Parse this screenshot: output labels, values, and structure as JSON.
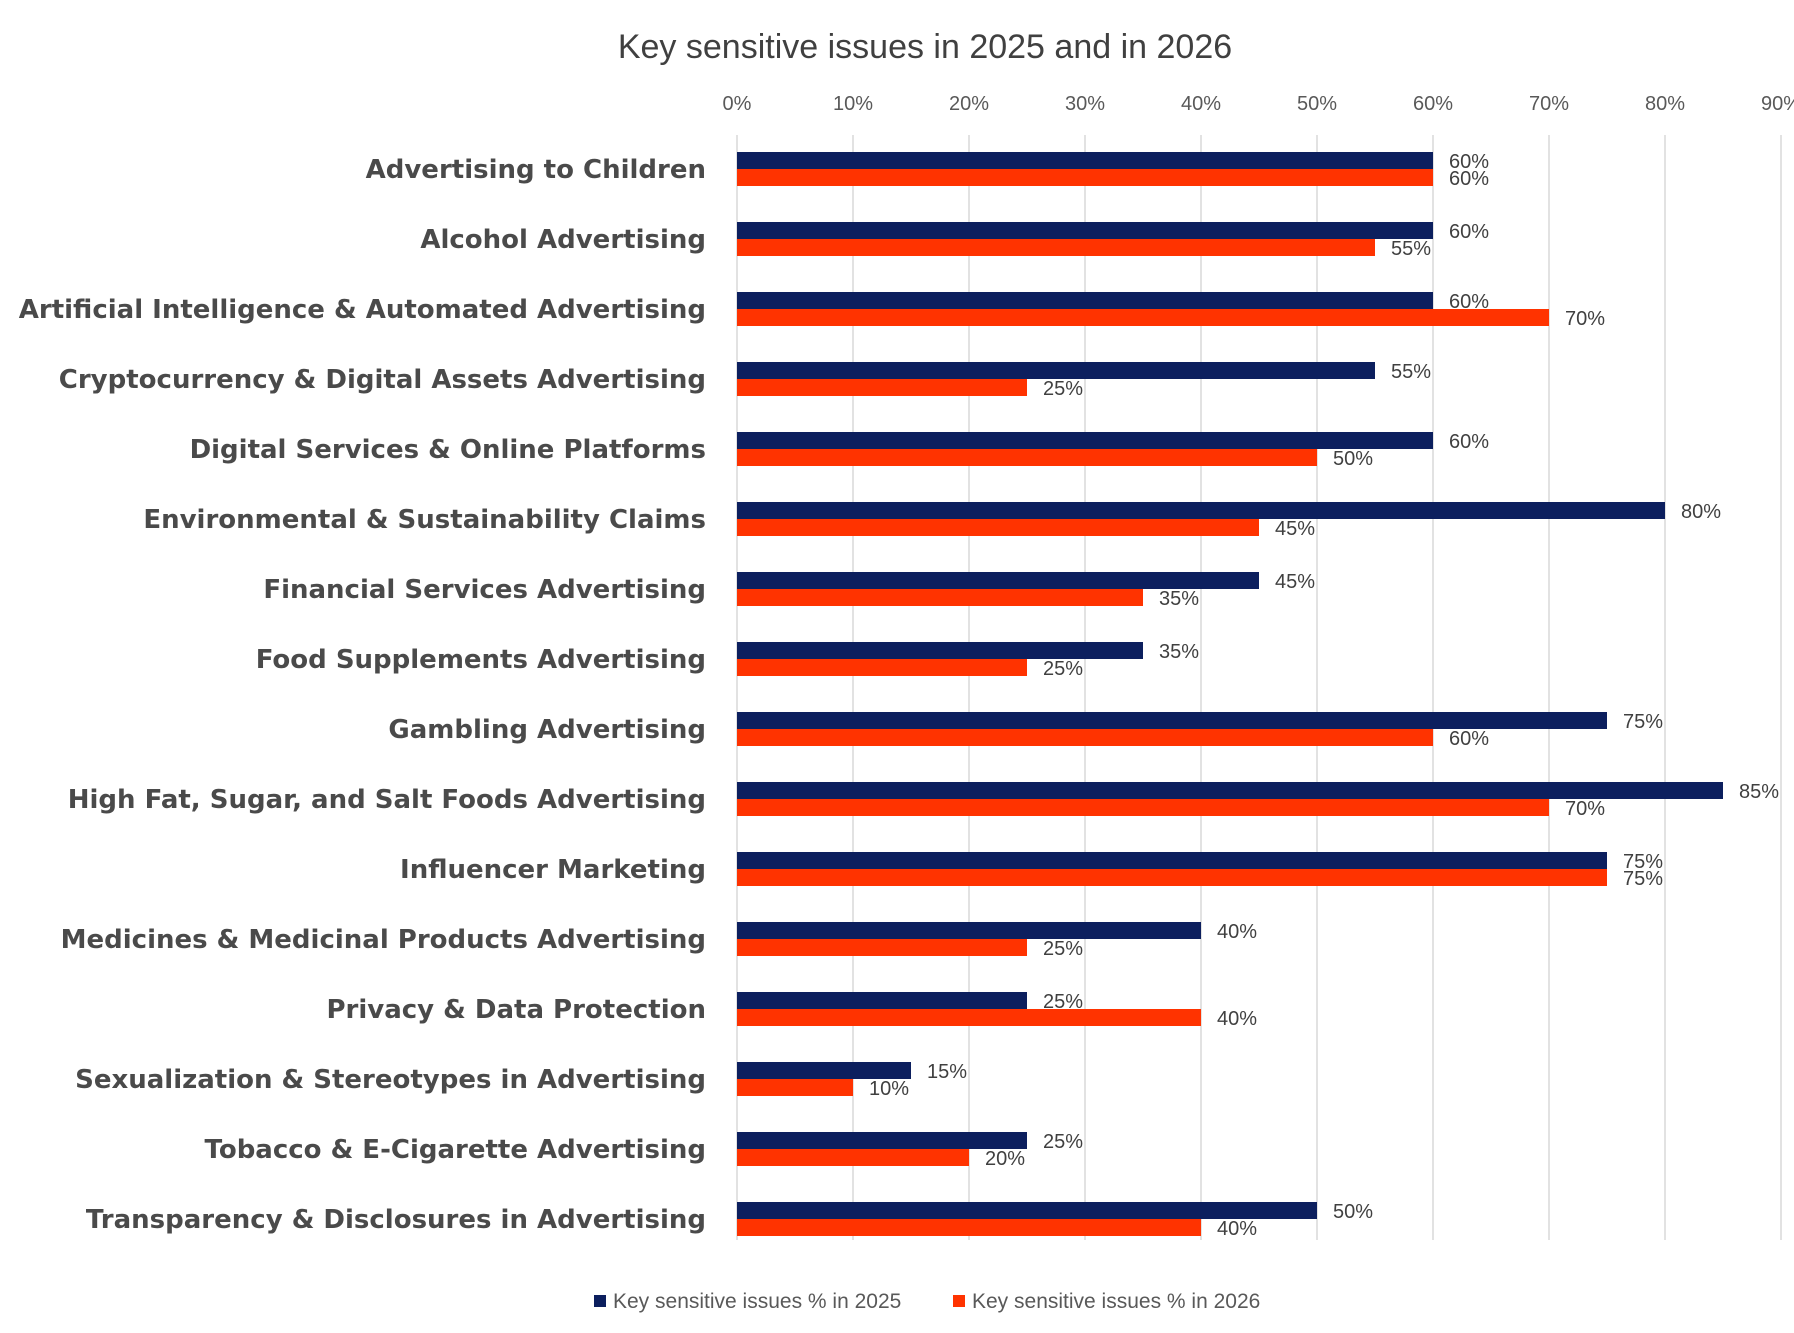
{
  "chart_data": {
    "type": "bar",
    "orientation": "horizontal",
    "title": "Key sensitive issues in 2025 and in 2026",
    "xlabel": "",
    "ylabel": "",
    "xlim": [
      0,
      90
    ],
    "x_ticks": [
      "0%",
      "10%",
      "20%",
      "30%",
      "40%",
      "50%",
      "60%",
      "70%",
      "80%",
      "90%"
    ],
    "grid": true,
    "legend_position": "bottom",
    "categories": [
      "Advertising to Children",
      "Alcohol Advertising",
      "Artificial Intelligence & Automated Advertising",
      "Cryptocurrency & Digital Assets Advertising",
      "Digital Services & Online Platforms",
      "Environmental & Sustainability Claims",
      "Financial Services Advertising",
      "Food Supplements Advertising",
      "Gambling Advertising",
      "High Fat, Sugar, and Salt Foods Advertising",
      "Influencer Marketing",
      "Medicines & Medicinal Products Advertising",
      "Privacy & Data Protection",
      "Sexualization & Stereotypes in Advertising",
      "Tobacco & E-Cigarette Advertising",
      "Transparency & Disclosures in Advertising"
    ],
    "series": [
      {
        "name": "Key sensitive issues % in 2025",
        "color": "#0c1f5e",
        "values": [
          60,
          60,
          60,
          55,
          60,
          80,
          45,
          35,
          75,
          85,
          75,
          40,
          25,
          15,
          25,
          50
        ]
      },
      {
        "name": "Key sensitive issues % in 2026",
        "color": "#ff3300",
        "values": [
          60,
          55,
          70,
          25,
          50,
          45,
          35,
          25,
          60,
          70,
          75,
          25,
          40,
          10,
          20,
          40
        ]
      }
    ]
  }
}
